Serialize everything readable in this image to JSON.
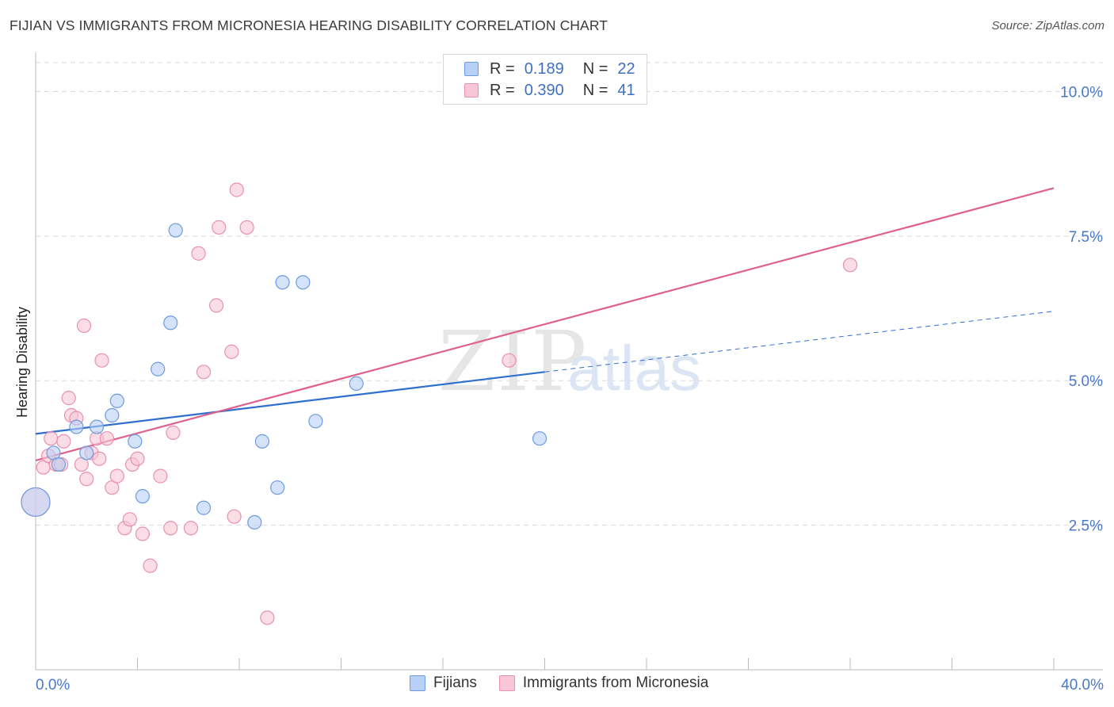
{
  "title": "FIJIAN VS IMMIGRANTS FROM MICRONESIA HEARING DISABILITY CORRELATION CHART",
  "source": "Source: ZipAtlas.com",
  "watermark": {
    "zip": "ZIP",
    "atlas": "atlas"
  },
  "legend": {
    "rows": [
      {
        "r_label": "R =",
        "r_value": "0.189",
        "n_label": "N =",
        "n_value": "22"
      },
      {
        "r_label": "R =",
        "r_value": "0.390",
        "n_label": "N =",
        "n_value": "41"
      }
    ]
  },
  "bottom_legend": {
    "fijians": "Fijians",
    "micronesia": "Immigrants from Micronesia"
  },
  "colors": {
    "blue_fill": "#b8d0f5",
    "blue_stroke": "#6d9be0",
    "blue_line": "#2f6fd0",
    "pink_fill": "#f8c6d6",
    "pink_stroke": "#e890b0",
    "pink_line": "#e0608c",
    "tick": "#4a78c8",
    "grid": "#d9d9d9"
  },
  "chart_data": {
    "type": "scatter",
    "title": "FIJIAN VS IMMIGRANTS FROM MICRONESIA HEARING DISABILITY CORRELATION CHART",
    "xlabel": "",
    "ylabel": "Hearing Disability",
    "xlim": [
      0,
      40
    ],
    "ylim": [
      0,
      10.5
    ],
    "x_tick_labels": [
      "0.0%",
      "40.0%"
    ],
    "y_ticks": [
      2.5,
      5.0,
      7.5,
      10.0
    ],
    "y_tick_labels": [
      "2.5%",
      "5.0%",
      "7.5%",
      "10.0%"
    ],
    "grid": true,
    "legend_position": "top-center",
    "series": [
      {
        "name": "Fijians",
        "color": "#6d9be0",
        "points": [
          [
            0.0,
            2.9
          ],
          [
            0.7,
            3.75
          ],
          [
            0.9,
            3.55
          ],
          [
            1.6,
            4.2
          ],
          [
            2.0,
            3.75
          ],
          [
            2.4,
            4.2
          ],
          [
            3.0,
            4.4
          ],
          [
            3.2,
            4.65
          ],
          [
            3.9,
            3.95
          ],
          [
            4.2,
            3.0
          ],
          [
            4.8,
            5.2
          ],
          [
            5.3,
            6.0
          ],
          [
            5.5,
            7.6
          ],
          [
            6.6,
            2.8
          ],
          [
            8.6,
            2.55
          ],
          [
            8.9,
            3.95
          ],
          [
            9.5,
            3.15
          ],
          [
            9.7,
            6.7
          ],
          [
            10.5,
            6.7
          ],
          [
            11.0,
            4.3
          ],
          [
            12.6,
            4.95
          ],
          [
            19.8,
            4.0
          ]
        ],
        "trend": {
          "x": [
            0.0,
            20.0
          ],
          "y": [
            4.08,
            5.15
          ],
          "dashed_x": [
            20.0,
            40.0
          ],
          "dashed_y": [
            5.15,
            6.2
          ]
        }
      },
      {
        "name": "Immigrants from Micronesia",
        "color": "#e890b0",
        "points": [
          [
            0.0,
            2.9
          ],
          [
            0.3,
            3.5
          ],
          [
            0.5,
            3.7
          ],
          [
            0.6,
            4.0
          ],
          [
            0.8,
            3.55
          ],
          [
            1.0,
            3.55
          ],
          [
            1.1,
            3.95
          ],
          [
            1.3,
            4.7
          ],
          [
            1.4,
            4.4
          ],
          [
            1.6,
            4.35
          ],
          [
            1.8,
            3.55
          ],
          [
            1.9,
            5.95
          ],
          [
            2.0,
            3.3
          ],
          [
            2.2,
            3.75
          ],
          [
            2.4,
            4.0
          ],
          [
            2.5,
            3.65
          ],
          [
            2.6,
            5.35
          ],
          [
            2.8,
            4.0
          ],
          [
            3.0,
            3.15
          ],
          [
            3.2,
            3.35
          ],
          [
            3.5,
            2.45
          ],
          [
            3.7,
            2.6
          ],
          [
            3.8,
            3.55
          ],
          [
            4.0,
            3.65
          ],
          [
            4.2,
            2.35
          ],
          [
            4.5,
            1.8
          ],
          [
            4.9,
            3.35
          ],
          [
            5.3,
            2.45
          ],
          [
            5.4,
            4.1
          ],
          [
            6.1,
            2.45
          ],
          [
            6.4,
            7.2
          ],
          [
            6.6,
            5.15
          ],
          [
            7.1,
            6.3
          ],
          [
            7.2,
            7.65
          ],
          [
            7.7,
            5.5
          ],
          [
            7.8,
            2.65
          ],
          [
            7.9,
            8.3
          ],
          [
            8.3,
            7.65
          ],
          [
            9.1,
            0.9
          ],
          [
            18.6,
            5.35
          ],
          [
            32.0,
            7.0
          ]
        ],
        "trend": {
          "x": [
            0.0,
            40.0
          ],
          "y": [
            3.62,
            8.33
          ]
        }
      }
    ]
  }
}
